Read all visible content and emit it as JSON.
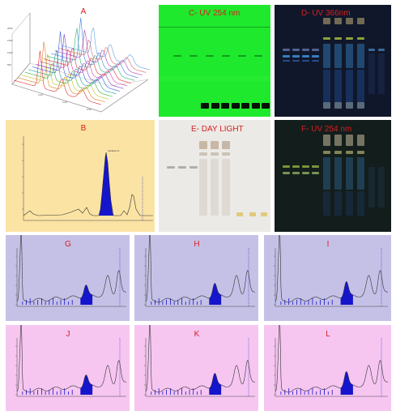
{
  "figure": {
    "panels": {
      "A": {
        "label": "A",
        "type": "3D overlaid chromatogram traces"
      },
      "B": {
        "label": "B",
        "type": "HPTLC densitogram"
      },
      "C": {
        "label": "C- UV 254 nm",
        "type": "TLC plate"
      },
      "D": {
        "label": "D- UV 366nm",
        "type": "TLC plate"
      },
      "E": {
        "label": "E- DAY LIGHT",
        "type": "TLC plate"
      },
      "F": {
        "label": "F- UV 254 nm",
        "type": "TLC plate"
      },
      "G": {
        "label": "G",
        "type": "densitogram"
      },
      "H": {
        "label": "H",
        "type": "densitogram"
      },
      "I": {
        "label": "I",
        "type": "densitogram"
      },
      "J": {
        "label": "J",
        "type": "densitogram"
      },
      "K": {
        "label": "K",
        "type": "densitogram"
      },
      "L": {
        "label": "L",
        "type": "densitogram"
      }
    },
    "colors": {
      "b_bg": "#fbe3a4",
      "ghi_bg": "#c5c1e6",
      "jkl_bg": "#f6c6f1",
      "c_plate": "#1ee92c",
      "d_plate": "#11172a",
      "e_plate": "#eceae6",
      "f_plate": "#131d1b",
      "peak_fill": "#1515cc",
      "label": "#d42020"
    }
  }
}
